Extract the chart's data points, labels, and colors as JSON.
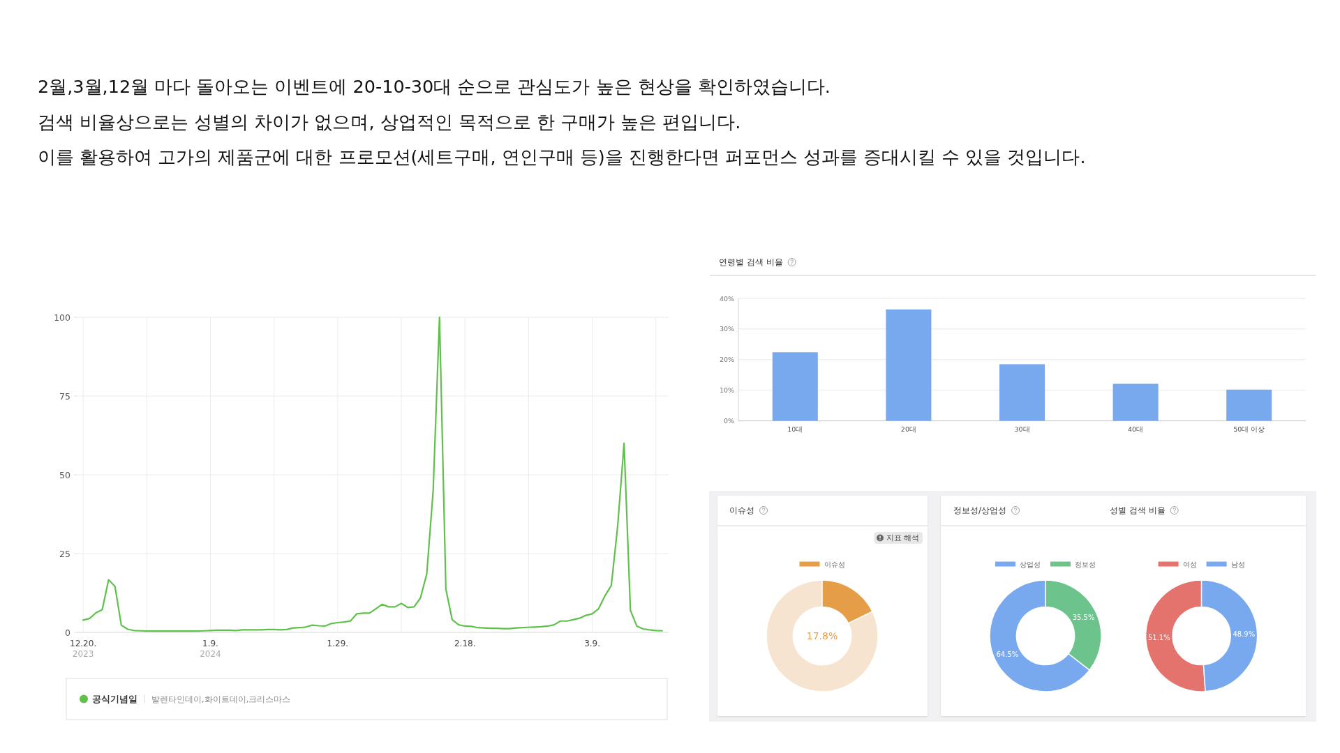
{
  "chart_data": [
    {
      "type": "other",
      "annotations": [
        "2월,3월,12월 마다 돌아오는 이벤트에 20-10-30대 순으로 관심도가 높은 현상을 확인하였습니다.",
        "검색 비율상으로는 성별의 차이가 없으며, 상업적인 목적으로 한 구매가 높은 편입니다.",
        "이를 활용하여 고가의 제품군에 대한 프로모션(세트구매, 연인구매 등)을 진행한다면 퍼포먼스 성과를 증대시킬 수 있을 것입니다."
      ]
    },
    {
      "type": "line",
      "x": [
        "2023-12-20",
        "2023-12-21",
        "2023-12-22",
        "2023-12-23",
        "2023-12-24",
        "2023-12-25",
        "2023-12-26",
        "2023-12-27",
        "2023-12-28",
        "2023-12-29",
        "2023-12-30",
        "2023-12-31",
        "2024-01-01",
        "2024-01-02",
        "2024-01-03",
        "2024-01-04",
        "2024-01-05",
        "2024-01-06",
        "2024-01-07",
        "2024-01-08",
        "2024-01-09",
        "2024-01-10",
        "2024-01-11",
        "2024-01-12",
        "2024-01-13",
        "2024-01-14",
        "2024-01-15",
        "2024-01-16",
        "2024-01-17",
        "2024-01-18",
        "2024-01-19",
        "2024-01-20",
        "2024-01-21",
        "2024-01-22",
        "2024-01-23",
        "2024-01-24",
        "2024-01-25",
        "2024-01-26",
        "2024-01-27",
        "2024-01-28",
        "2024-01-29",
        "2024-01-30",
        "2024-01-31",
        "2024-02-01",
        "2024-02-02",
        "2024-02-03",
        "2024-02-04",
        "2024-02-05",
        "2024-02-06",
        "2024-02-07",
        "2024-02-08",
        "2024-02-09",
        "2024-02-10",
        "2024-02-11",
        "2024-02-12",
        "2024-02-13",
        "2024-02-14",
        "2024-02-15",
        "2024-02-16",
        "2024-02-17",
        "2024-02-18",
        "2024-02-19",
        "2024-02-20",
        "2024-02-21",
        "2024-02-22",
        "2024-02-23",
        "2024-02-24",
        "2024-02-25",
        "2024-02-26",
        "2024-02-27",
        "2024-02-28",
        "2024-02-29",
        "2024-03-01",
        "2024-03-02",
        "2024-03-03",
        "2024-03-04",
        "2024-03-05",
        "2024-03-06",
        "2024-03-07",
        "2024-03-08",
        "2024-03-09",
        "2024-03-10",
        "2024-03-11",
        "2024-03-12",
        "2024-03-13",
        "2024-03-14",
        "2024-03-15",
        "2024-03-16",
        "2024-03-17",
        "2024-03-18",
        "2024-03-19",
        "2024-03-20"
      ],
      "series": [
        {
          "name": "공식기념일",
          "color": "#5fc14c",
          "values": [
            3.9,
            4.4,
            6.2,
            7.2,
            16.7,
            14.6,
            2.3,
            1.0,
            0.6,
            0.5,
            0.4,
            0.4,
            0.4,
            0.4,
            0.4,
            0.4,
            0.4,
            0.4,
            0.4,
            0.5,
            0.6,
            0.7,
            0.7,
            0.7,
            0.6,
            0.8,
            0.8,
            0.8,
            0.8,
            0.9,
            0.9,
            0.8,
            0.9,
            1.4,
            1.5,
            1.7,
            2.3,
            2.1,
            2.0,
            2.8,
            3.1,
            3.3,
            3.6,
            5.9,
            6.1,
            6.1,
            7.5,
            8.9,
            8.1,
            8.1,
            9.2,
            7.9,
            8.1,
            10.9,
            18.6,
            44.9,
            100,
            13.7,
            4.0,
            2.4,
            2.0,
            1.9,
            1.5,
            1.4,
            1.3,
            1.3,
            1.2,
            1.2,
            1.4,
            1.5,
            1.6,
            1.7,
            1.8,
            2.0,
            2.4,
            3.6,
            3.6,
            4.0,
            4.5,
            5.4,
            5.9,
            7.5,
            11.6,
            14.9,
            33.8,
            60,
            7.0,
            2.0,
            1.1,
            0.8,
            0.6,
            0.5
          ]
        }
      ],
      "xlim": [
        "2023-12-19",
        "2024-03-21"
      ],
      "xticks": [
        {
          "value": "2023-12-20",
          "label": "12.20.\n2023"
        },
        {
          "value": "2023-12-30",
          "label": null
        },
        {
          "value": "2024-01-09",
          "label": "1.9.\n2024"
        },
        {
          "value": "2024-01-19",
          "label": null
        },
        {
          "value": "2024-01-29",
          "label": "1.29."
        },
        {
          "value": "2024-02-08",
          "label": null
        },
        {
          "value": "2024-02-18",
          "label": "2.18."
        },
        {
          "value": "2024-02-28",
          "label": null
        },
        {
          "value": "2024-03-09",
          "label": "3.9."
        },
        {
          "value": "2024-03-19",
          "label": null
        }
      ],
      "ylim": [
        0,
        100
      ],
      "yticks": [
        0,
        25,
        50,
        75,
        100
      ],
      "grid": true,
      "legend": "bottom",
      "annotations": [
        "발렌타인데이,화이트데이,크리스마스"
      ]
    },
    {
      "type": "bar",
      "title": "연령별 검색 비율",
      "categories": [
        "10대",
        "20대",
        "30대",
        "40대",
        "50대 이상"
      ],
      "values": [
        22.4,
        36.4,
        18.5,
        12.1,
        10.2
      ],
      "color": "#78a8ee",
      "ylim": [
        0,
        40
      ],
      "yticks": [
        {
          "value": 0,
          "label": "0%"
        },
        {
          "value": 10,
          "label": "10%"
        },
        {
          "value": 20,
          "label": "20%"
        },
        {
          "value": 30,
          "label": "30%"
        },
        {
          "value": 40,
          "label": "40%"
        }
      ],
      "grid": "y"
    },
    {
      "type": "donut",
      "title": "이슈성",
      "categories": [
        null,
        "이슈성"
      ],
      "values": [
        82.2,
        17.8
      ],
      "colors": [
        "#f7e4d0",
        "#e59d48"
      ],
      "value_labels": [
        null,
        "17.8%"
      ],
      "legend": "top",
      "annotations": [
        "지표 해석"
      ]
    },
    {
      "type": "donut",
      "title": "정보성/상업성",
      "categories": [
        "상업성",
        "정보성"
      ],
      "values": [
        64.5,
        35.5
      ],
      "colors": [
        "#78a8ee",
        "#6cc48c"
      ],
      "value_labels": [
        "64.5%",
        "35.5%"
      ],
      "legend": "top"
    },
    {
      "type": "donut",
      "title": "성별 검색 비율",
      "categories": [
        "여성",
        "남성"
      ],
      "values": [
        51.1,
        48.9
      ],
      "colors": [
        "#e4736e",
        "#78a8ee"
      ],
      "value_labels": [
        "51.1%",
        "48.9%"
      ],
      "legend": "top"
    }
  ]
}
